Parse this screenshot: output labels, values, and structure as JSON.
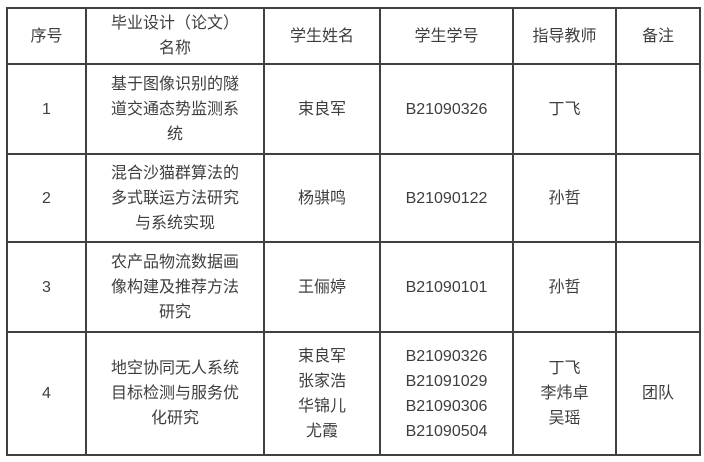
{
  "page": {
    "background_color": "#ffffff",
    "text_color": "#3e3e3e",
    "border_color": "#404040"
  },
  "table": {
    "headers": {
      "no": "序号",
      "title": [
        "毕业设计（论文）",
        "名称"
      ],
      "student_name": "学生姓名",
      "student_id": "学生学号",
      "advisor": "指导教师",
      "note": "备注"
    },
    "rows": [
      {
        "no": "1",
        "title": [
          "基于图像识别的隧",
          "道交通态势监测系",
          "统"
        ],
        "students": [
          "束良军"
        ],
        "ids": [
          "B21090326"
        ],
        "advisors": [
          "丁飞"
        ],
        "note": ""
      },
      {
        "no": "2",
        "title": [
          "混合沙猫群算法的",
          "多式联运方法研究",
          "与系统实现"
        ],
        "students": [
          "杨骐鸣"
        ],
        "ids": [
          "B21090122"
        ],
        "advisors": [
          "孙哲"
        ],
        "note": ""
      },
      {
        "no": "3",
        "title": [
          "农产品物流数据画",
          "像构建及推荐方法",
          "研究"
        ],
        "students": [
          "王俪婷"
        ],
        "ids": [
          "B21090101"
        ],
        "advisors": [
          "孙哲"
        ],
        "note": ""
      },
      {
        "no": "4",
        "title": [
          "地空协同无人系统",
          "目标检测与服务优",
          "化研究"
        ],
        "students": [
          "束良军",
          "张家浩",
          "华锦儿",
          "尤霞"
        ],
        "ids": [
          "B21090326",
          "B21091029",
          "B21090306",
          "B21090504"
        ],
        "advisors": [
          "丁飞",
          "李炜卓",
          "吴瑶"
        ],
        "note": "团队"
      }
    ]
  }
}
